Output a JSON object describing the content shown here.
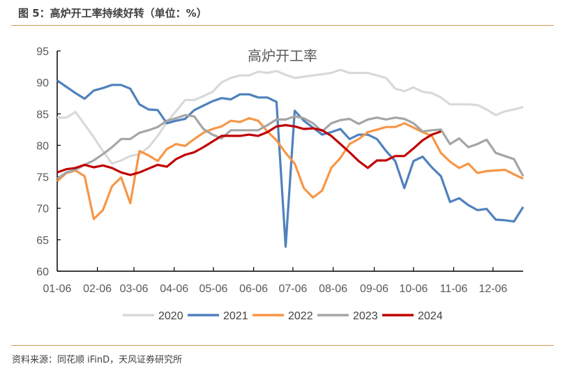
{
  "figure_title": "图 5：高炉开工率持续好转（单位：%）",
  "source": "资料来源：同花顺 iFinD，天风证券研究所",
  "chart_data": {
    "type": "line",
    "title": "高炉开工率",
    "xlabel": "",
    "ylabel": "",
    "ylim": [
      60,
      95
    ],
    "yticks": [
      60,
      65,
      70,
      75,
      80,
      85,
      90,
      95
    ],
    "x_tick_labels": [
      "01-06",
      "02-06",
      "03-06",
      "04-06",
      "05-06",
      "06-06",
      "07-06",
      "08-06",
      "09-06",
      "10-06",
      "11-06",
      "12-06"
    ],
    "x_frequency": "weekly",
    "grid": false,
    "legend_position": "bottom",
    "series": [
      {
        "name": "2020",
        "color": "#d9d9d9",
        "values": [
          84.4,
          84.4,
          85.3,
          83.3,
          81.3,
          79.1,
          77.1,
          77.6,
          78.3,
          78.6,
          79.7,
          81.5,
          83.7,
          85.4,
          87.2,
          87.2,
          87.8,
          88.5,
          90.0,
          90.7,
          91.1,
          91.1,
          91.7,
          91.5,
          91.8,
          91.2,
          90.7,
          90.9,
          91.1,
          91.3,
          91.5,
          92.0,
          91.5,
          91.5,
          91.5,
          91.1,
          90.7,
          89.0,
          88.6,
          89.2,
          88.5,
          88.3,
          87.6,
          86.5,
          86.5,
          86.5,
          86.4,
          85.7,
          84.8,
          85.4,
          85.7,
          86.1
        ]
      },
      {
        "name": "2021",
        "color": "#4f81bd",
        "values": [
          90.3,
          89.3,
          88.3,
          87.4,
          88.7,
          89.1,
          89.6,
          89.6,
          89.0,
          86.5,
          85.7,
          85.6,
          83.5,
          83.9,
          84.2,
          85.6,
          86.3,
          87.0,
          87.5,
          87.3,
          88.1,
          88.1,
          87.6,
          87.6,
          86.9,
          63.9,
          85.5,
          83.9,
          82.8,
          81.7,
          82.1,
          82.6,
          81.0,
          81.7,
          81.7,
          81.0,
          79.1,
          77.5,
          73.2,
          77.5,
          78.2,
          76.5,
          75.1,
          71.0,
          71.6,
          70.5,
          69.7,
          69.9,
          68.2,
          68.1,
          67.9,
          70.2
        ]
      },
      {
        "name": "2022",
        "color": "#f79646",
        "values": [
          74.3,
          75.6,
          76.0,
          75.1,
          68.3,
          69.7,
          73.5,
          74.9,
          70.8,
          79.1,
          78.4,
          77.5,
          79.4,
          80.2,
          79.9,
          81.0,
          82.0,
          82.6,
          83.0,
          83.9,
          83.7,
          84.3,
          83.9,
          82.2,
          80.8,
          78.8,
          77.1,
          73.2,
          71.7,
          72.8,
          76.4,
          78.0,
          80.2,
          81.0,
          82.1,
          82.5,
          82.9,
          82.9,
          83.5,
          82.8,
          82.1,
          81.5,
          78.8,
          77.4,
          76.4,
          77.1,
          75.6,
          75.9,
          76.0,
          76.1,
          75.4,
          74.7
        ]
      },
      {
        "name": "2023",
        "color": "#a5a5a5",
        "values": [
          74.7,
          75.7,
          76.1,
          76.9,
          77.6,
          78.6,
          79.7,
          81.0,
          81.0,
          82.0,
          82.4,
          82.9,
          83.9,
          84.3,
          84.8,
          84.6,
          82.6,
          81.7,
          81.1,
          82.4,
          82.4,
          82.4,
          82.4,
          83.2,
          84.1,
          84.1,
          84.6,
          84.3,
          83.5,
          82.2,
          83.5,
          84.0,
          84.2,
          83.4,
          84.1,
          84.4,
          84.1,
          84.4,
          84.2,
          83.5,
          82.2,
          82.4,
          82.5,
          80.2,
          81.1,
          79.7,
          80.2,
          80.9,
          78.8,
          78.3,
          77.8,
          75.1
        ]
      },
      {
        "name": "2024",
        "color": "#c00000",
        "values": [
          75.7,
          76.2,
          76.4,
          76.9,
          76.5,
          76.8,
          76.4,
          75.7,
          75.3,
          75.7,
          76.3,
          76.9,
          76.6,
          77.8,
          78.5,
          78.9,
          79.7,
          80.6,
          81.5,
          81.5,
          81.5,
          81.7,
          81.5,
          82.1,
          83.0,
          83.2,
          83.0,
          82.6,
          82.7,
          82.4,
          81.5,
          80.2,
          78.9,
          77.5,
          76.4,
          77.6,
          77.6,
          78.3,
          78.3,
          79.5,
          80.8,
          81.7,
          82.2
        ]
      }
    ]
  }
}
